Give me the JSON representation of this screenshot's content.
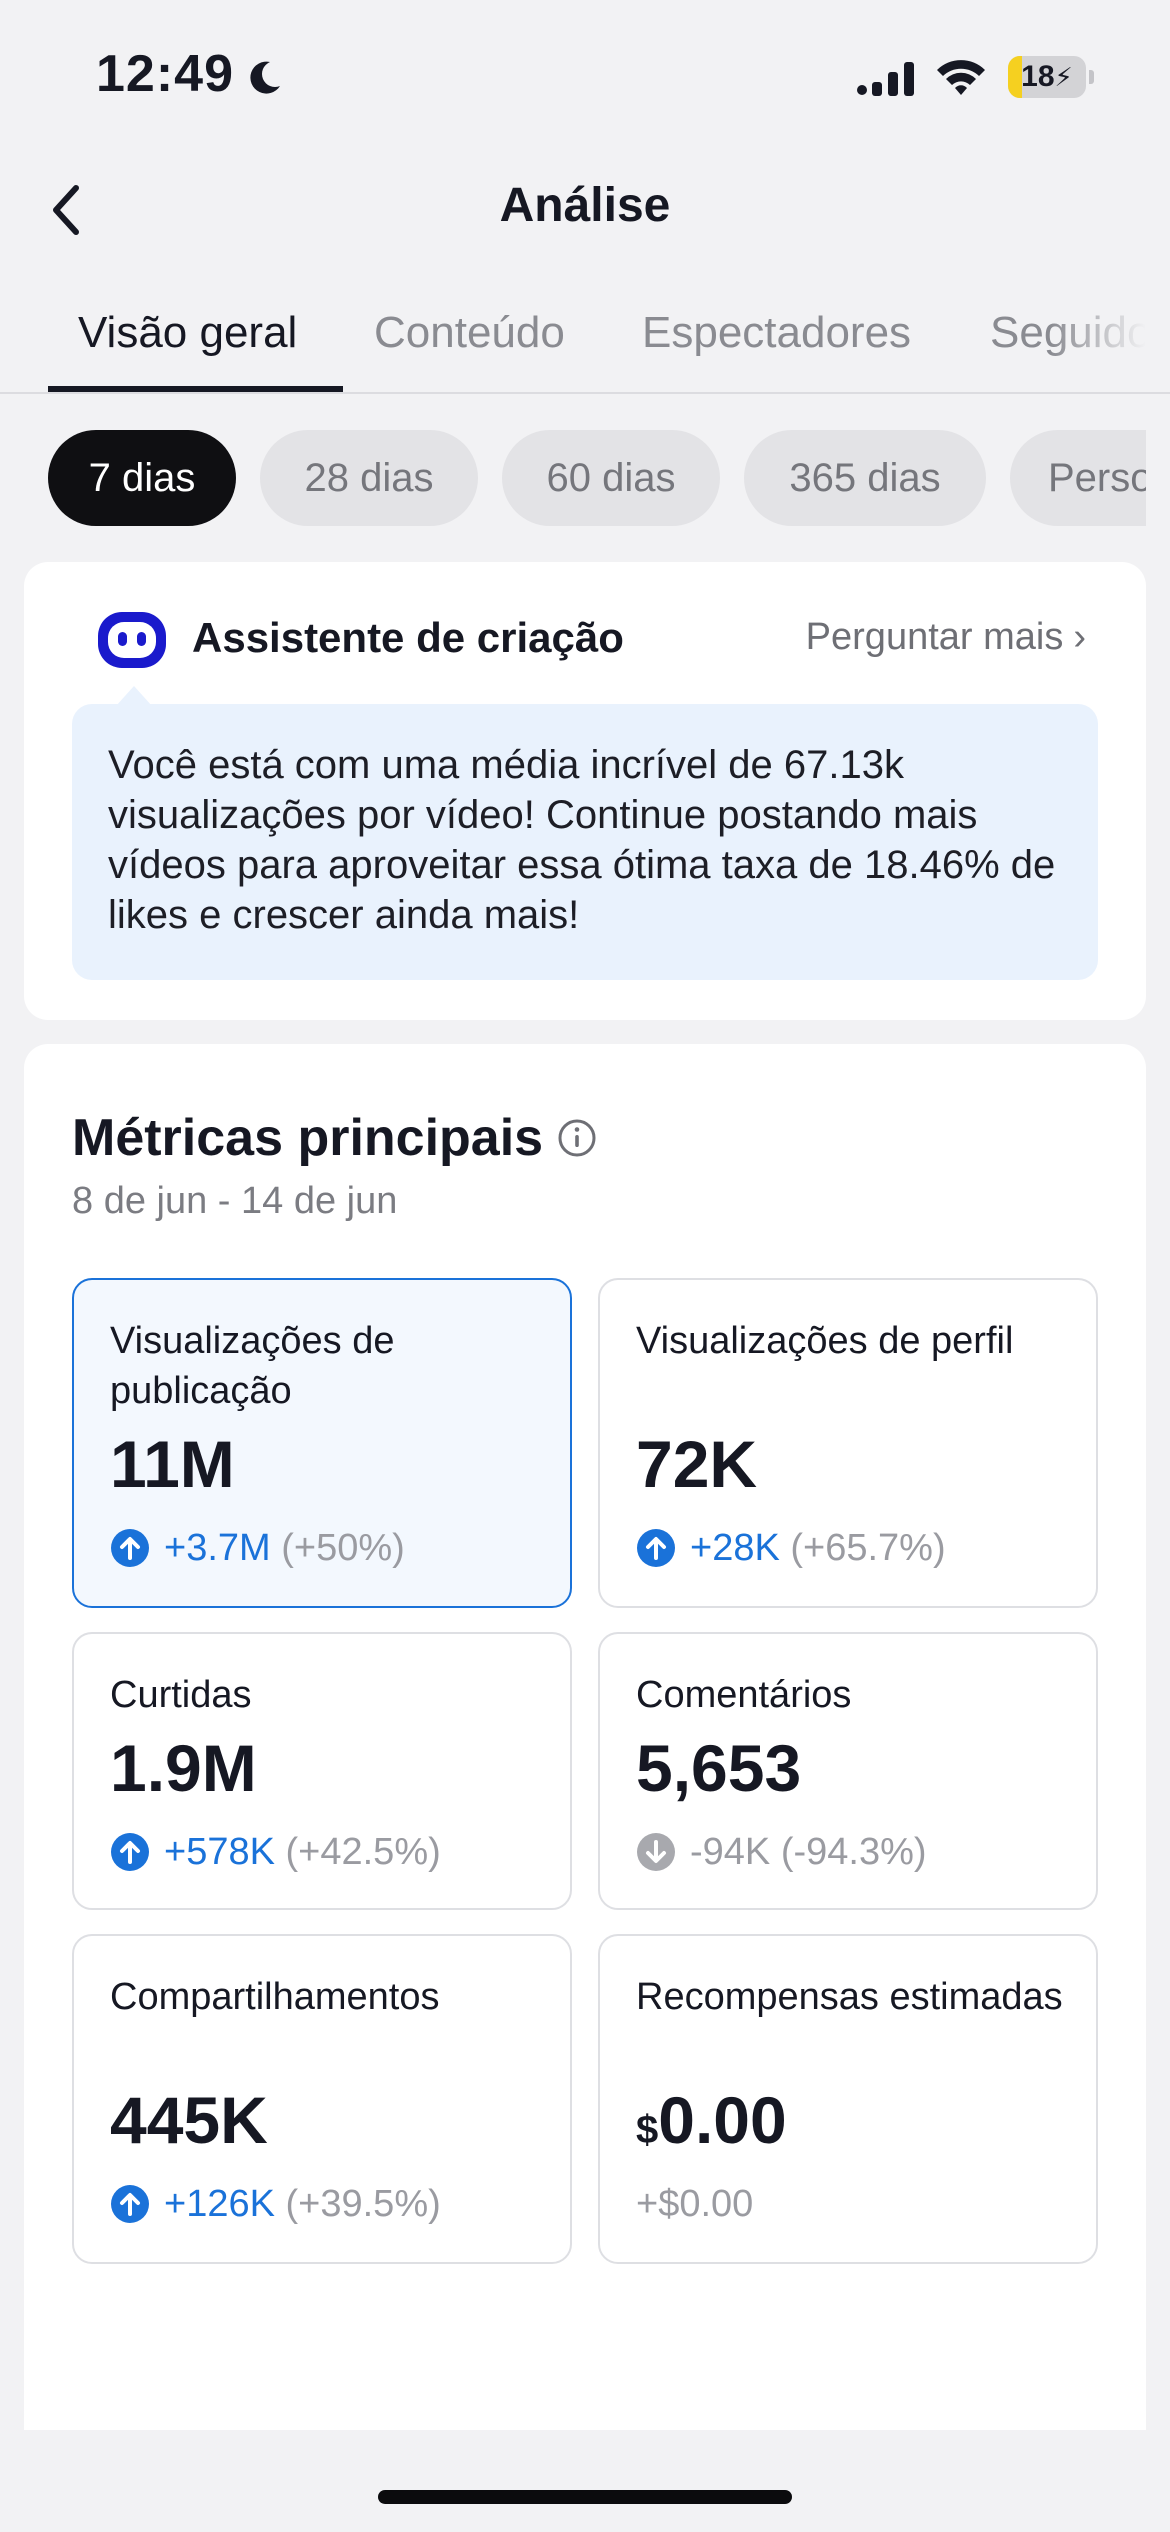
{
  "status_bar": {
    "time": "12:49",
    "battery_level": 18,
    "battery_label": "18",
    "icons": [
      "moon-icon",
      "cellular-signal-icon",
      "wifi-icon",
      "battery-charging-icon"
    ]
  },
  "nav": {
    "title": "Análise",
    "back_icon": "chevron-left-icon"
  },
  "tabs": [
    {
      "label": "Visão geral",
      "active": true
    },
    {
      "label": "Conteúdo",
      "active": false
    },
    {
      "label": "Espectadores",
      "active": false
    },
    {
      "label": "Seguido",
      "active": false
    }
  ],
  "periods": [
    {
      "label": "7 dias",
      "active": true
    },
    {
      "label": "28 dias",
      "active": false
    },
    {
      "label": "60 dias",
      "active": false
    },
    {
      "label": "365 dias",
      "active": false
    },
    {
      "label": "Perso",
      "active": false
    }
  ],
  "assistant": {
    "title": "Assistente de criação",
    "ask_more": "Perguntar mais",
    "message": "Você está com uma média incrível de 67.13k visualizações por vídeo! Continue postando mais vídeos para aproveitar essa ótima taxa de 18.46% de likes e crescer ainda mais!",
    "accent": "#1a1acc"
  },
  "metrics": {
    "title": "Métricas principais",
    "range": "8 de jun - 14 de jun",
    "tiles": [
      {
        "label": "Visualizações de publicação",
        "value": "11M",
        "delta": "+3.7M",
        "pct": "(+50%)",
        "trend": "up",
        "selected": true
      },
      {
        "label": "Visualizações de perfil",
        "value": "72K",
        "delta": "+28K",
        "pct": "(+65.7%)",
        "trend": "up",
        "selected": false
      },
      {
        "label": "Curtidas",
        "value": "1.9M",
        "delta": "+578K",
        "pct": "(+42.5%)",
        "trend": "up",
        "selected": false
      },
      {
        "label": "Comentários",
        "value": "5,653",
        "delta": "-94K",
        "pct": "(-94.3%)",
        "trend": "down",
        "selected": false
      },
      {
        "label": "Compartilhamentos",
        "value": "445K",
        "delta": "+126K",
        "pct": "(+39.5%)",
        "trend": "up",
        "selected": false
      },
      {
        "label": "Recompensas estimadas",
        "currency": "$",
        "value": "0.00",
        "delta": "+$0.00",
        "pct": "",
        "trend": "neutral",
        "selected": false
      }
    ]
  },
  "colors": {
    "accent_blue": "#1a72d9",
    "muted_gray": "#9a9ba1",
    "chip_active": "#0f0f12"
  }
}
